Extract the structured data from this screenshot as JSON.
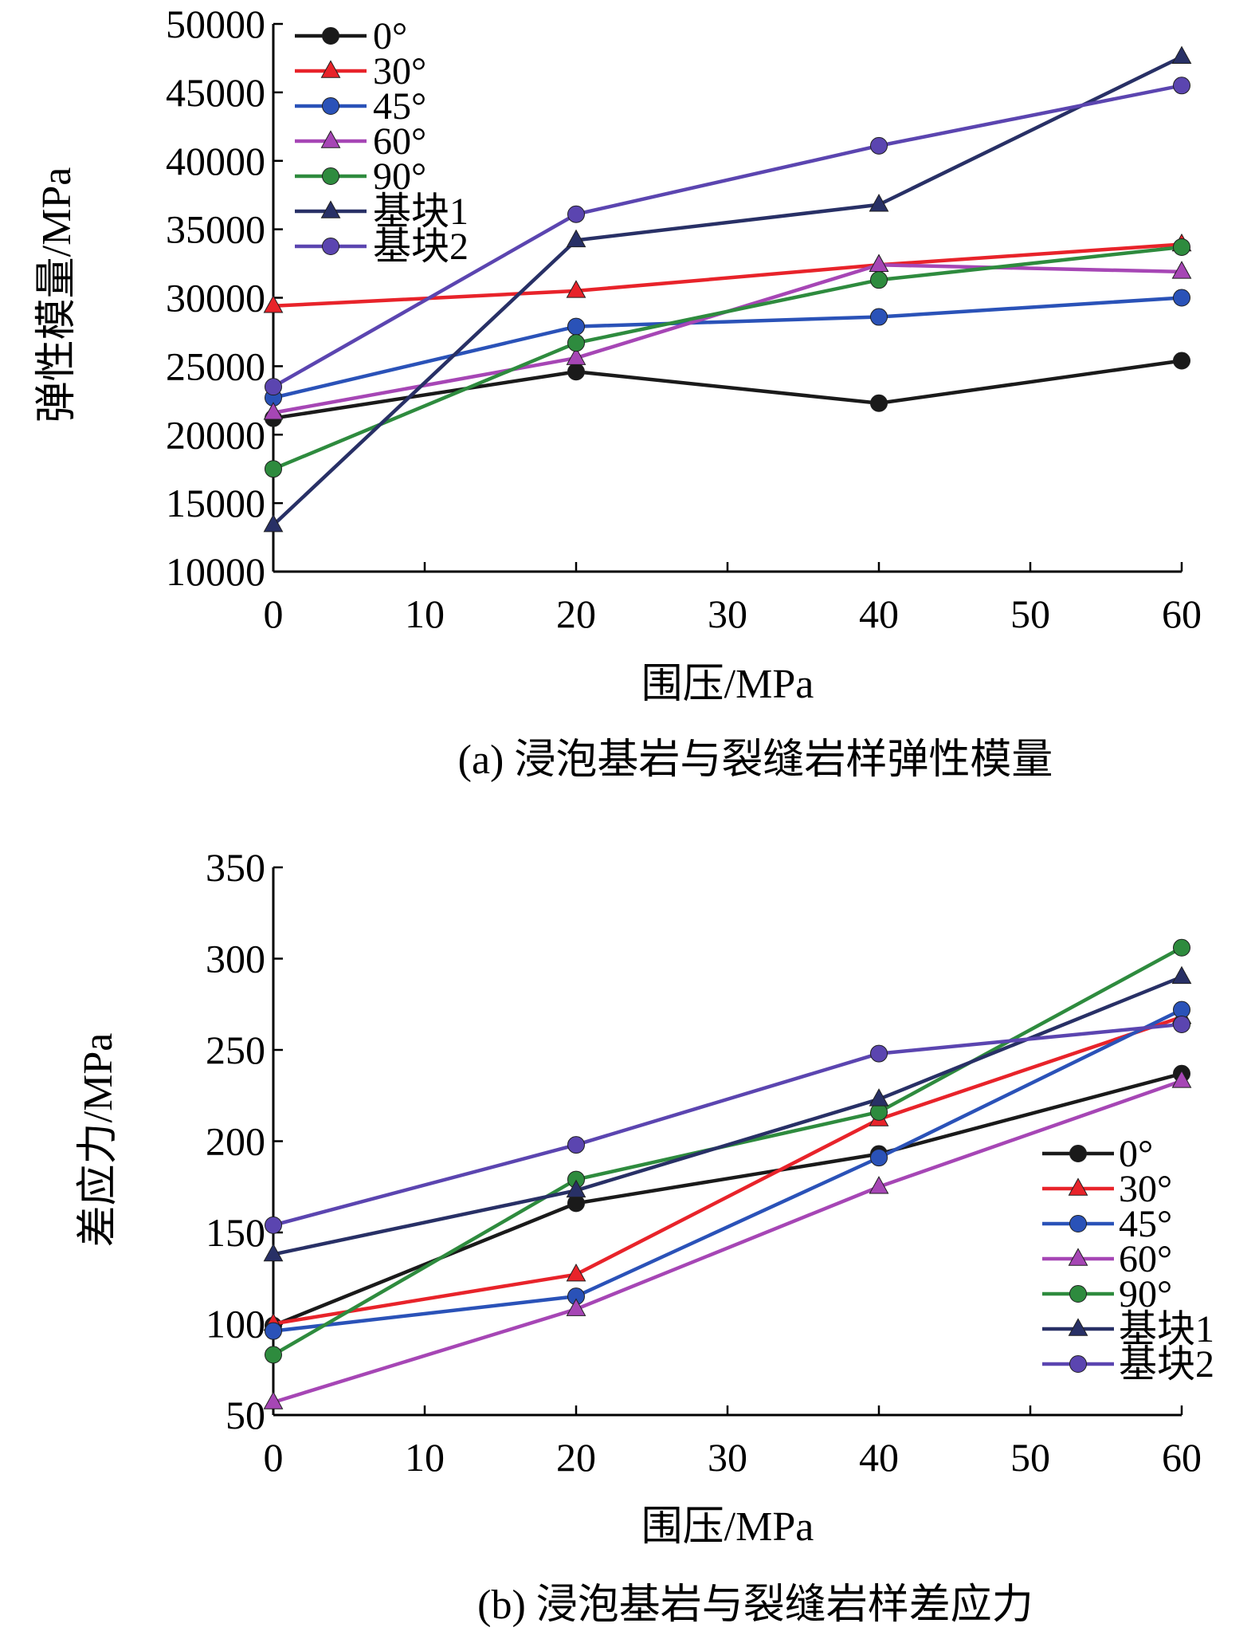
{
  "chart_data": [
    {
      "type": "line",
      "caption": "(a) 浸泡基岩与裂缝岩样弹性模量",
      "xlabel": "围压/MPa",
      "ylabel": "弹性模量/MPa",
      "xlim": [
        0,
        60
      ],
      "ylim": [
        10000,
        50000
      ],
      "xticks": [
        0,
        10,
        20,
        30,
        40,
        50,
        60
      ],
      "yticks": [
        10000,
        15000,
        20000,
        25000,
        30000,
        35000,
        40000,
        45000,
        50000
      ],
      "legend_position": "top-left",
      "x": [
        0,
        20,
        40,
        60
      ],
      "series": [
        {
          "name": "0°",
          "color": "#1a1a1a",
          "marker": "circle",
          "values": [
            21200,
            24600,
            22300,
            25400
          ]
        },
        {
          "name": "30°",
          "color": "#e8232a",
          "marker": "triangle",
          "values": [
            29400,
            30500,
            32400,
            33900
          ]
        },
        {
          "name": "45°",
          "color": "#2a52b8",
          "marker": "circle",
          "values": [
            22700,
            27900,
            28600,
            30000
          ]
        },
        {
          "name": "60°",
          "color": "#a646b5",
          "marker": "triangle",
          "values": [
            21600,
            25600,
            32400,
            31900
          ]
        },
        {
          "name": "90°",
          "color": "#2e8b3e",
          "marker": "circle",
          "values": [
            17500,
            26700,
            31300,
            33700
          ]
        },
        {
          "name": "基块1",
          "color": "#283066",
          "marker": "triangle",
          "values": [
            13400,
            34200,
            36800,
            47600
          ]
        },
        {
          "name": "基块2",
          "color": "#5b45b0",
          "marker": "circle",
          "values": [
            23500,
            36100,
            41100,
            45500
          ]
        }
      ]
    },
    {
      "type": "line",
      "caption": "(b) 浸泡基岩与裂缝岩样差应力",
      "xlabel": "围压/MPa",
      "ylabel": "差应力/MPa",
      "xlim": [
        0,
        60
      ],
      "ylim": [
        50,
        350
      ],
      "xticks": [
        0,
        10,
        20,
        30,
        40,
        50,
        60
      ],
      "yticks": [
        50,
        100,
        150,
        200,
        250,
        300,
        350
      ],
      "legend_position": "bottom-right",
      "x": [
        0,
        20,
        40,
        60
      ],
      "series": [
        {
          "name": "0°",
          "color": "#1a1a1a",
          "marker": "circle",
          "values": [
            99,
            166,
            193,
            237
          ]
        },
        {
          "name": "30°",
          "color": "#e8232a",
          "marker": "triangle",
          "values": [
            100,
            127,
            212,
            268
          ]
        },
        {
          "name": "45°",
          "color": "#2a52b8",
          "marker": "circle",
          "values": [
            96,
            115,
            191,
            272
          ]
        },
        {
          "name": "60°",
          "color": "#a646b5",
          "marker": "triangle",
          "values": [
            57,
            108,
            175,
            233
          ]
        },
        {
          "name": "90°",
          "color": "#2e8b3e",
          "marker": "circle",
          "values": [
            83,
            179,
            216,
            306
          ]
        },
        {
          "name": "基块1",
          "color": "#283066",
          "marker": "triangle",
          "values": [
            138,
            173,
            223,
            290
          ]
        },
        {
          "name": "基块2",
          "color": "#5b45b0",
          "marker": "circle",
          "values": [
            154,
            198,
            248,
            264
          ]
        }
      ]
    }
  ]
}
